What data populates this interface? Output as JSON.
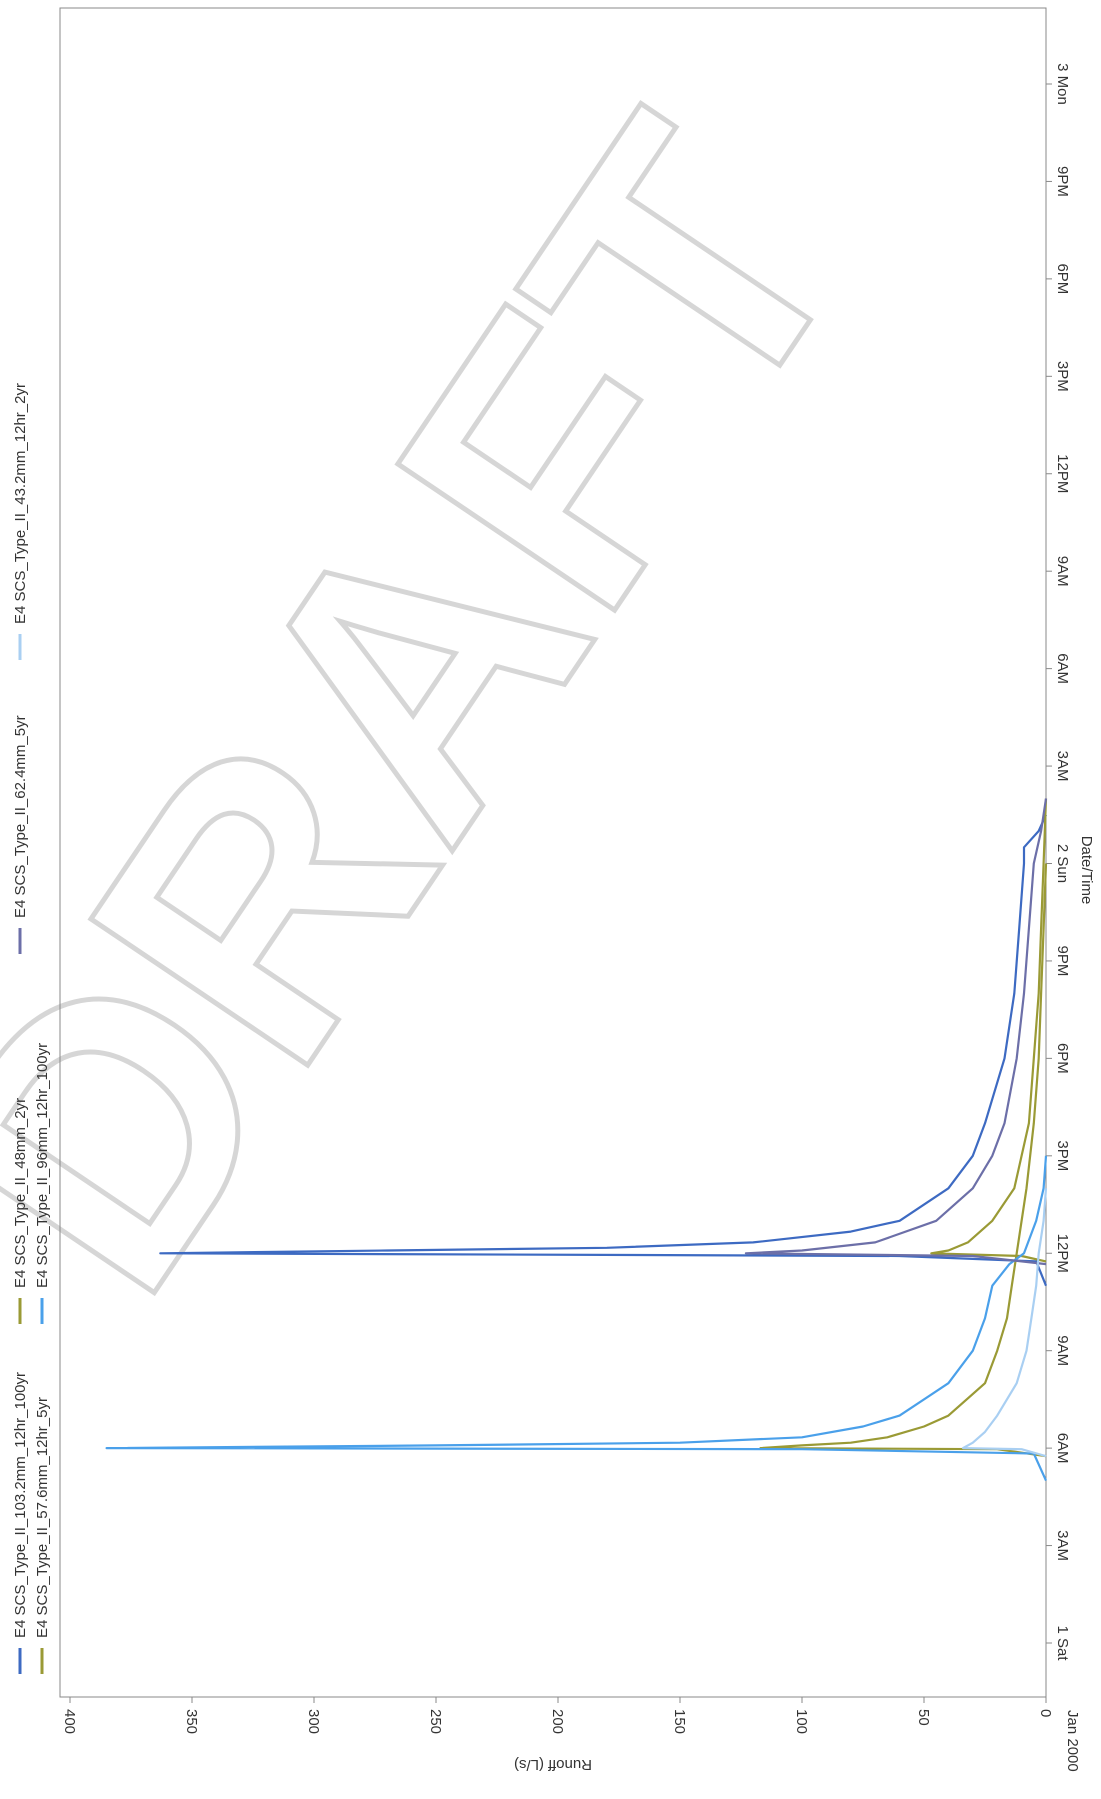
{
  "chart_data": {
    "type": "line",
    "orientation": "rotated-90",
    "xlabel": "Date/Time",
    "ylabel": "Runoff (L/s)",
    "ylim": [
      0,
      400
    ],
    "y_ticks": [
      0,
      50,
      100,
      150,
      200,
      250,
      300,
      350,
      400
    ],
    "xlim": [
      "2000-01-01 00:00",
      "2000-01-03 03:00"
    ],
    "x_ticks": [
      {
        "time": "2000-01-01 00:00",
        "label": "1 Sat"
      },
      {
        "time": "2000-01-01 03:00",
        "label": "3AM"
      },
      {
        "time": "2000-01-01 06:00",
        "label": "6AM"
      },
      {
        "time": "2000-01-01 09:00",
        "label": "9AM"
      },
      {
        "time": "2000-01-01 12:00",
        "label": "12PM"
      },
      {
        "time": "2000-01-01 15:00",
        "label": "3PM"
      },
      {
        "time": "2000-01-01 18:00",
        "label": "6PM"
      },
      {
        "time": "2000-01-01 21:00",
        "label": "9PM"
      },
      {
        "time": "2000-01-02 00:00",
        "label": "2 Sun"
      },
      {
        "time": "2000-01-02 03:00",
        "label": "3AM"
      },
      {
        "time": "2000-01-02 06:00",
        "label": "6AM"
      },
      {
        "time": "2000-01-02 09:00",
        "label": "9AM"
      },
      {
        "time": "2000-01-02 12:00",
        "label": "12PM"
      },
      {
        "time": "2000-01-02 15:00",
        "label": "3PM"
      },
      {
        "time": "2000-01-02 18:00",
        "label": "6PM"
      },
      {
        "time": "2000-01-02 21:00",
        "label": "9PM"
      },
      {
        "time": "2000-01-03 00:00",
        "label": "3 Mon"
      }
    ],
    "corner_label": "Jan 2000",
    "grid": false,
    "legend_position": "top",
    "series": [
      {
        "name": "E4 SCS_Type_II_103.2mm_12hr_100yr",
        "color": "#3d6ac2",
        "points": [
          [
            "2000-01-01 11:00",
            0
          ],
          [
            "2000-01-01 11:45",
            4
          ],
          [
            "2000-01-01 11:55",
            60
          ],
          [
            "2000-01-01 12:00",
            363
          ],
          [
            "2000-01-01 12:05",
            270
          ],
          [
            "2000-01-01 12:10",
            180
          ],
          [
            "2000-01-01 12:20",
            120
          ],
          [
            "2000-01-01 12:40",
            80
          ],
          [
            "2000-01-01 13:00",
            60
          ],
          [
            "2000-01-01 14:00",
            40
          ],
          [
            "2000-01-01 15:00",
            30
          ],
          [
            "2000-01-01 16:00",
            25
          ],
          [
            "2000-01-01 18:00",
            17
          ],
          [
            "2000-01-01 20:00",
            13
          ],
          [
            "2000-01-01 22:00",
            11
          ],
          [
            "2000-01-02 00:00",
            9
          ],
          [
            "2000-01-02 00:30",
            9
          ],
          [
            "2000-01-02 01:00",
            3
          ],
          [
            "2000-01-02 01:30",
            0
          ]
        ]
      },
      {
        "name": "E4 SCS_Type_II_48mm_2yr",
        "color": "#9a9a35",
        "points": [
          [
            "2000-01-01 05:45",
            0
          ],
          [
            "2000-01-01 05:58",
            20
          ],
          [
            "2000-01-01 06:00",
            117
          ],
          [
            "2000-01-01 06:05",
            100
          ],
          [
            "2000-01-01 06:10",
            80
          ],
          [
            "2000-01-01 06:20",
            65
          ],
          [
            "2000-01-01 06:40",
            50
          ],
          [
            "2000-01-01 07:00",
            40
          ],
          [
            "2000-01-01 08:00",
            25
          ],
          [
            "2000-01-01 09:00",
            20
          ],
          [
            "2000-01-01 10:00",
            16
          ],
          [
            "2000-01-01 11:00",
            14
          ],
          [
            "2000-01-01 12:00",
            12
          ],
          [
            "2000-01-01 13:00",
            10
          ],
          [
            "2000-01-01 14:00",
            8
          ],
          [
            "2000-01-01 16:00",
            5
          ],
          [
            "2000-01-01 18:00",
            3
          ],
          [
            "2000-01-01 20:00",
            2
          ],
          [
            "2000-01-01 22:00",
            1
          ],
          [
            "2000-01-02 00:00",
            0
          ]
        ]
      },
      {
        "name": "E4 SCS_Type_II_57.6mm_12hr_5yr",
        "color": "#9a9a35",
        "points": [
          [
            "2000-01-01 11:45",
            0
          ],
          [
            "2000-01-01 11:55",
            10
          ],
          [
            "2000-01-01 12:00",
            47
          ],
          [
            "2000-01-01 12:05",
            40
          ],
          [
            "2000-01-01 12:20",
            32
          ],
          [
            "2000-01-01 13:00",
            22
          ],
          [
            "2000-01-01 14:00",
            13
          ],
          [
            "2000-01-01 15:00",
            10
          ],
          [
            "2000-01-01 16:00",
            7
          ],
          [
            "2000-01-01 18:00",
            5
          ],
          [
            "2000-01-01 20:00",
            3
          ],
          [
            "2000-01-01 22:00",
            2
          ],
          [
            "2000-01-02 00:00",
            1
          ],
          [
            "2000-01-02 02:00",
            0
          ]
        ]
      },
      {
        "name": "E4 SCS_Type_II_96mm_12hr_100yr",
        "color": "#4aa0ea",
        "points": [
          [
            "2000-01-01 05:00",
            0
          ],
          [
            "2000-01-01 05:50",
            5
          ],
          [
            "2000-01-01 05:58",
            100
          ],
          [
            "2000-01-01 06:00",
            385
          ],
          [
            "2000-01-01 06:05",
            250
          ],
          [
            "2000-01-01 06:10",
            150
          ],
          [
            "2000-01-01 06:20",
            100
          ],
          [
            "2000-01-01 06:40",
            75
          ],
          [
            "2000-01-01 07:00",
            60
          ],
          [
            "2000-01-01 08:00",
            40
          ],
          [
            "2000-01-01 09:00",
            30
          ],
          [
            "2000-01-01 10:00",
            25
          ],
          [
            "2000-01-01 11:00",
            22
          ],
          [
            "2000-01-01 11:40",
            15
          ],
          [
            "2000-01-01 12:00",
            9
          ],
          [
            "2000-01-01 13:00",
            4
          ],
          [
            "2000-01-01 14:00",
            1
          ],
          [
            "2000-01-01 15:00",
            0
          ]
        ]
      },
      {
        "name": "E4 SCS_Type_II_62.4mm_5yr",
        "color": "#6c6fa8",
        "points": [
          [
            "2000-01-01 11:40",
            0
          ],
          [
            "2000-01-01 11:55",
            30
          ],
          [
            "2000-01-01 12:00",
            123
          ],
          [
            "2000-01-01 12:05",
            100
          ],
          [
            "2000-01-01 12:20",
            70
          ],
          [
            "2000-01-01 13:00",
            45
          ],
          [
            "2000-01-01 14:00",
            30
          ],
          [
            "2000-01-01 15:00",
            22
          ],
          [
            "2000-01-01 16:00",
            17
          ],
          [
            "2000-01-01 18:00",
            12
          ],
          [
            "2000-01-01 20:00",
            9
          ],
          [
            "2000-01-01 22:00",
            7
          ],
          [
            "2000-01-02 00:00",
            5
          ],
          [
            "2000-01-02 01:00",
            2
          ],
          [
            "2000-01-02 02:00",
            0
          ]
        ]
      },
      {
        "name": "E4 SCS_Type_II_43.2mm_12hr_2yr",
        "color": "#a9cff2",
        "points": [
          [
            "2000-01-01 05:45",
            0
          ],
          [
            "2000-01-01 05:58",
            10
          ],
          [
            "2000-01-01 06:00",
            34
          ],
          [
            "2000-01-01 06:10",
            30
          ],
          [
            "2000-01-01 06:30",
            25
          ],
          [
            "2000-01-01 07:00",
            20
          ],
          [
            "2000-01-01 08:00",
            12
          ],
          [
            "2000-01-01 09:00",
            8
          ],
          [
            "2000-01-01 10:00",
            6
          ],
          [
            "2000-01-01 11:00",
            4
          ],
          [
            "2000-01-01 12:00",
            3
          ],
          [
            "2000-01-01 13:00",
            1
          ],
          [
            "2000-01-01 14:00",
            0
          ]
        ]
      }
    ]
  },
  "watermark": "DRAFT"
}
